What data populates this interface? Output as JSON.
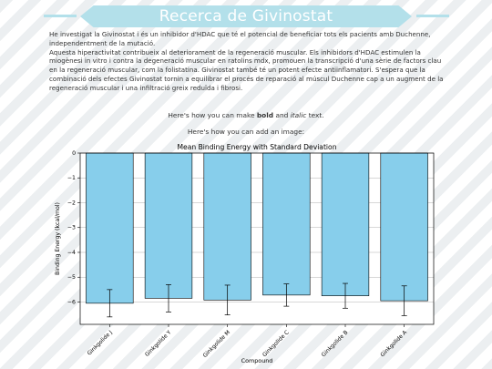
{
  "banner": {
    "title": "Recerca de Givinostat"
  },
  "intro": {
    "paragraph1": "He investigat la Givinostat i és un inhibidor d'HDAC que té el potencial de beneficiar tots els pacients amb Duchenne, independentment de la mutació.",
    "paragraph2": "Aquesta hiperactivitat contribueix al deteriorament de la regeneració muscular. Els inhibidors d'HDAC estimulen la miogènesi in vitro i contra la degeneració muscular en ratolins mdx, promouen la transcripció d'una sèrie de factors clau en la regeneració muscular, com la folistatina. Givinostat també té un potent efecte antiinflamatori. S'espera que la combinació dels efectes Givinostat tornin a equilibrar el procés de reparació al múscul Duchenne cap a un augment de la regeneració muscular i una infiltració greix reduïda i fibrosi."
  },
  "markdown_line": {
    "prefix": "Here's how you can make ",
    "bold": "bold",
    "middle": " and ",
    "italic": "italic",
    "suffix": " text."
  },
  "image_line": "Here's how you can add an image:",
  "chart_data": {
    "type": "bar",
    "title": "Mean Binding Energy with Standard Deviation",
    "xlabel": "Compound",
    "ylabel": "Binding Energy (kcal/mol)",
    "categories": [
      "Ginkgolide J",
      "Ginkgolide Y",
      "Ginkgolide M",
      "Ginkgolide C",
      "Ginkgolide B",
      "Ginkgolide A"
    ],
    "values": [
      -6.05,
      -5.85,
      -5.92,
      -5.72,
      -5.75,
      -5.95
    ],
    "errors": [
      0.55,
      0.55,
      0.6,
      0.45,
      0.5,
      0.6
    ],
    "ylim": [
      -6.9,
      0
    ],
    "yticks": [
      0,
      -1,
      -2,
      -3,
      -4,
      -5,
      -6
    ],
    "grid": true,
    "bar_color": "#87ceeb",
    "bar_edge_color": "#000000",
    "error_color": "#000000",
    "grid_color": "#b0b0b0"
  }
}
